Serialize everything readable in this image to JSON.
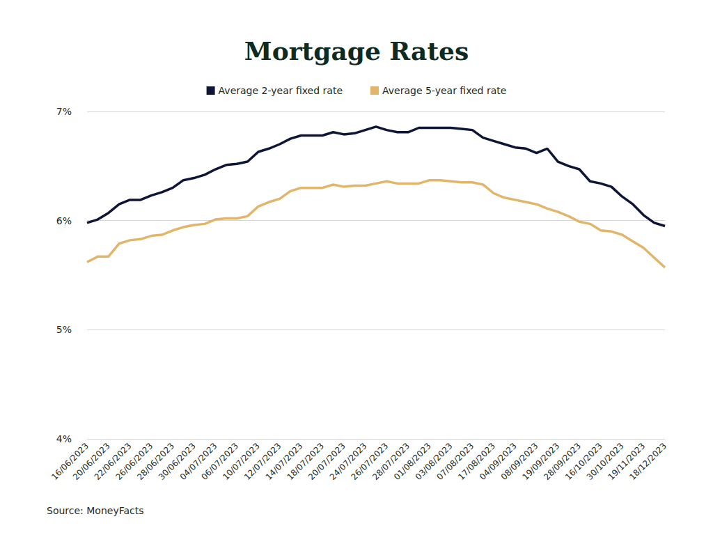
{
  "chart_data": {
    "type": "line",
    "title": "Mortgage Rates",
    "source": "Source: MoneyFacts",
    "categories": [
      "16/06/2023",
      null,
      "20/06/2023",
      null,
      "22/06/2023",
      null,
      "26/06/2023",
      null,
      "28/06/2023",
      null,
      "30/06/2023",
      null,
      "04/07/2023",
      null,
      "06/07/2023",
      null,
      "10/07/2023",
      null,
      "12/07/2023",
      null,
      "14/07/2023",
      null,
      "18/07/2023",
      null,
      "20/07/2023",
      null,
      "24/07/2023",
      null,
      "26/07/2023",
      null,
      "28/07/2023",
      null,
      "01/08/2023",
      null,
      "03/08/2023",
      null,
      "07/08/2023",
      null,
      "17/08/2023",
      null,
      "04/09/2023",
      null,
      "08/09/2023",
      null,
      "19/09/2023",
      null,
      "28/09/2023",
      null,
      "16/10/2023",
      null,
      "30/10/2023",
      null,
      "19/11/2023",
      null,
      "18/12/2023"
    ],
    "series": [
      {
        "name": "Average 2-year fixed rate",
        "color": "#0f1535",
        "values": [
          5.98,
          6.01,
          6.07,
          6.15,
          6.19,
          6.19,
          6.23,
          6.26,
          6.3,
          6.37,
          6.39,
          6.42,
          6.47,
          6.51,
          6.52,
          6.54,
          6.63,
          6.66,
          6.7,
          6.75,
          6.78,
          6.78,
          6.78,
          6.81,
          6.79,
          6.8,
          6.83,
          6.86,
          6.83,
          6.81,
          6.81,
          6.85,
          6.85,
          6.85,
          6.85,
          6.84,
          6.83,
          6.76,
          6.73,
          6.7,
          6.67,
          6.66,
          6.62,
          6.66,
          6.54,
          6.5,
          6.47,
          6.36,
          6.34,
          6.31,
          6.22,
          6.15,
          6.05,
          5.98,
          5.95
        ]
      },
      {
        "name": "Average 5-year fixed rate",
        "color": "#e2b66a",
        "values": [
          5.62,
          5.67,
          5.67,
          5.79,
          5.82,
          5.83,
          5.86,
          5.87,
          5.91,
          5.94,
          5.96,
          5.97,
          6.01,
          6.02,
          6.02,
          6.04,
          6.13,
          6.17,
          6.2,
          6.27,
          6.3,
          6.3,
          6.3,
          6.33,
          6.31,
          6.32,
          6.32,
          6.34,
          6.36,
          6.34,
          6.34,
          6.34,
          6.37,
          6.37,
          6.36,
          6.35,
          6.35,
          6.33,
          6.25,
          6.21,
          6.19,
          6.17,
          6.15,
          6.11,
          6.08,
          6.04,
          5.99,
          5.97,
          5.91,
          5.9,
          5.87,
          5.81,
          5.75,
          5.66,
          5.57
        ]
      }
    ],
    "ylim": [
      4,
      7
    ],
    "yticks": [
      {
        "value": 4,
        "label": "4%"
      },
      {
        "value": 5,
        "label": "5%"
      },
      {
        "value": 6,
        "label": "6%"
      },
      {
        "value": 7,
        "label": "7%"
      }
    ],
    "grid": true,
    "legend": "top"
  }
}
